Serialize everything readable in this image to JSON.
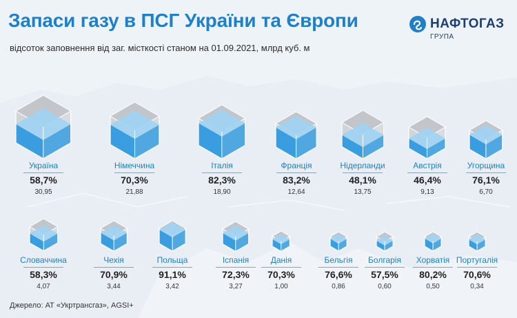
{
  "header": {
    "title": "Запаси газу в ПСГ України та Європи",
    "subtitle": "відсоток заповнення від заг. місткості станом на 01.09.2021, млрд куб. м"
  },
  "logo": {
    "name": "НАФТОГАЗ",
    "sub": "ГРУПА"
  },
  "source": "Джерело: АТ «Укртрансгаз», AGSI+",
  "colors": {
    "title": "#1f80c8",
    "water": "#3a9ddf",
    "water_light": "#9fd3f3",
    "glass": "#a3a6aa",
    "background": "#e8eef4"
  },
  "chart_data": {
    "type": "bar",
    "categories": [
      "Україна",
      "Німеччина",
      "Італія",
      "Франція",
      "Нідерланди",
      "Австрія",
      "Угорщина",
      "Словаччина",
      "Чехія",
      "Польща",
      "Іспанія",
      "Данія",
      "Бельгія",
      "Болгарія",
      "Хорватія",
      "Португалія"
    ],
    "fill_percent_labels": [
      "58,7%",
      "70,3%",
      "82,3%",
      "83,2%",
      "48,1%",
      "46,4%",
      "76,1%",
      "58,3%",
      "70,9%",
      "91,1%",
      "72,3%",
      "70,3%",
      "76,6%",
      "57,5%",
      "80,2%",
      "70,6%"
    ],
    "capacity_labels": [
      "30,95",
      "21,88",
      "18,90",
      "12,64",
      "13,75",
      "9,13",
      "6,70",
      "4,07",
      "3,44",
      "3,42",
      "3,27",
      "1,00",
      "0,86",
      "0,60",
      "0,50",
      "0,34"
    ],
    "series": [
      {
        "values": [
          58.7,
          70.3,
          82.3,
          83.2,
          48.1,
          46.4,
          76.1,
          58.3,
          70.9,
          91.1,
          72.3,
          70.3,
          76.6,
          57.5,
          80.2,
          70.6
        ]
      },
      {
        "values": [
          30.95,
          21.88,
          18.9,
          12.64,
          13.75,
          9.13,
          6.7,
          4.07,
          3.44,
          3.42,
          3.27,
          1.0,
          0.86,
          0.6,
          0.5,
          0.34
        ]
      }
    ]
  }
}
